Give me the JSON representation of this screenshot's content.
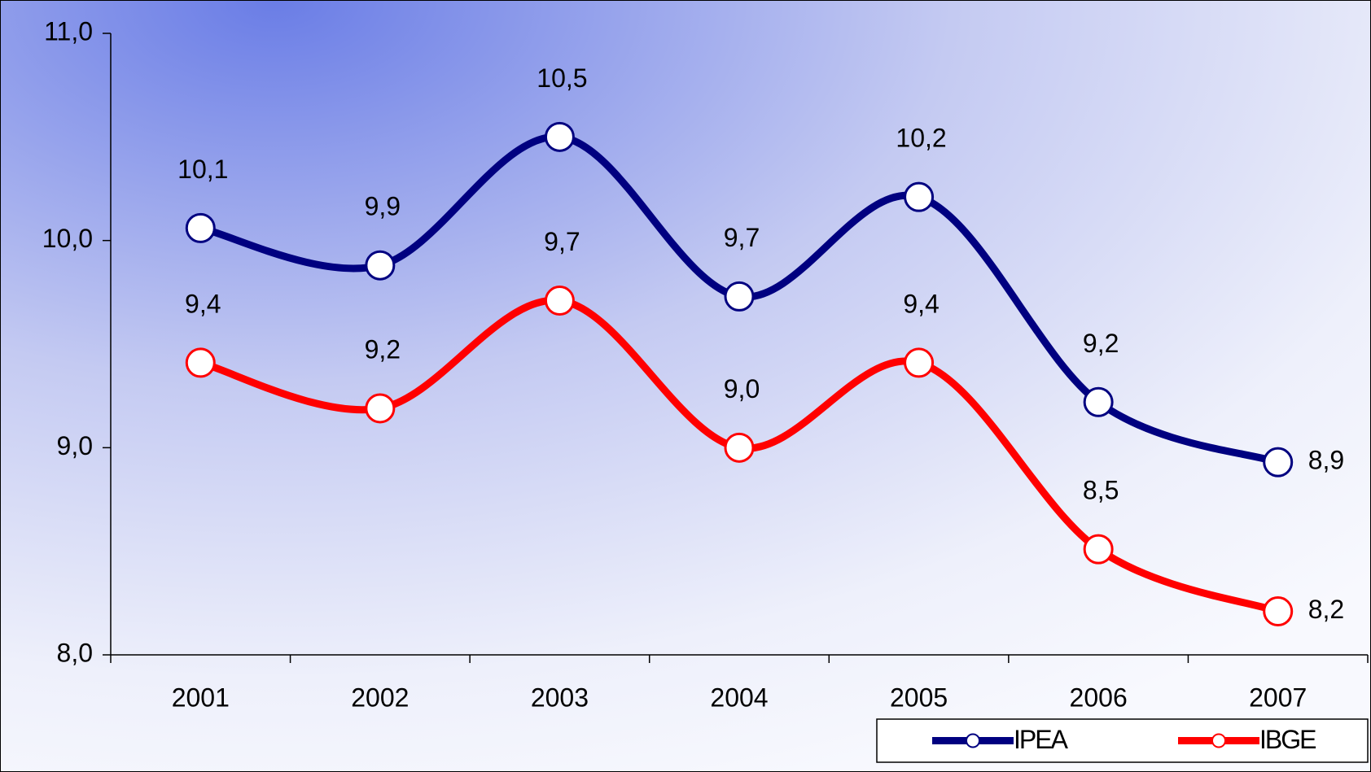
{
  "chart_data": {
    "type": "line",
    "categories": [
      "2001",
      "2002",
      "2003",
      "2004",
      "2005",
      "2006",
      "2007"
    ],
    "series": [
      {
        "name": "IPEA",
        "color": "#000080",
        "values": [
          10.06,
          9.88,
          10.5,
          9.73,
          10.21,
          9.22,
          8.93
        ],
        "value_labels": [
          "10,1",
          "9,9",
          "10,5",
          "9,7",
          "10,2",
          "9,2",
          "8,9"
        ]
      },
      {
        "name": "IBGE",
        "color": "#ff0000",
        "values": [
          9.41,
          9.19,
          9.71,
          9.0,
          9.41,
          8.51,
          8.21
        ],
        "value_labels": [
          "9,4",
          "9,2",
          "9,7",
          "9,0",
          "9,4",
          "8,5",
          "8,2"
        ]
      }
    ],
    "ylim": [
      8,
      11
    ],
    "yticks": [
      {
        "value": 8,
        "label": "8,0"
      },
      {
        "value": 9,
        "label": "9,0"
      },
      {
        "value": 10,
        "label": "10,0"
      },
      {
        "value": 11,
        "label": "11,0"
      }
    ],
    "legend": "lower right"
  }
}
